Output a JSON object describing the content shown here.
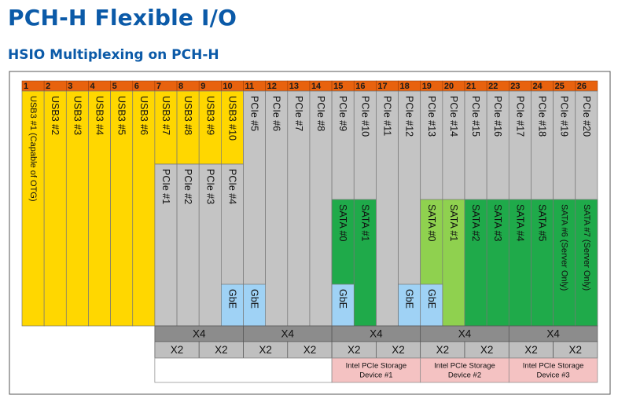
{
  "page": {
    "title": "PCH-H Flexible I/O",
    "subtitle": "HSIO Multiplexing on PCH-H"
  },
  "colors": {
    "header": "#e8620e",
    "usb": "#ffd700",
    "pcie": "#c4c4c4",
    "sata_dark": "#1faa4a",
    "sata_light": "#8fd14f",
    "gbe": "#9fd2f5",
    "mux_bar": "#8c8c8c",
    "x2_row": "#bfbfbf",
    "storage": "#f4c2c2",
    "grid_line": "#777777"
  },
  "diagram": {
    "lane_numbers": [
      "1",
      "2",
      "3",
      "4",
      "5",
      "6",
      "7",
      "8",
      "9",
      "10",
      "11",
      "12",
      "13",
      "14",
      "15",
      "16",
      "17",
      "18",
      "19",
      "20",
      "21",
      "22",
      "23",
      "24",
      "25",
      "26"
    ],
    "blocks": [
      {
        "lane": 1,
        "color": "usb",
        "layer": "top",
        "label": "USB3 #1 (Capable of OTG)"
      },
      {
        "lane": 2,
        "color": "usb",
        "layer": "top",
        "label": "USB3 #2"
      },
      {
        "lane": 3,
        "color": "usb",
        "layer": "top",
        "label": "USB3 #3"
      },
      {
        "lane": 4,
        "color": "usb",
        "layer": "top",
        "label": "USB3 #4"
      },
      {
        "lane": 5,
        "color": "usb",
        "layer": "top",
        "label": "USB3 #5"
      },
      {
        "lane": 6,
        "color": "usb",
        "layer": "top",
        "label": "USB3 #6"
      },
      {
        "lane": 7,
        "color": "usb",
        "layer": "top",
        "label": "USB3 #7"
      },
      {
        "lane": 8,
        "color": "usb",
        "layer": "top",
        "label": "USB3 #8"
      },
      {
        "lane": 9,
        "color": "usb",
        "layer": "top",
        "label": "USB3 #9"
      },
      {
        "lane": 10,
        "color": "usb",
        "layer": "top",
        "label": "USB3 #10"
      },
      {
        "lane": 7,
        "color": "pcie",
        "layer": "bottom",
        "label": "PCIe #1"
      },
      {
        "lane": 8,
        "color": "pcie",
        "layer": "bottom",
        "label": "PCIe #2"
      },
      {
        "lane": 9,
        "color": "pcie",
        "layer": "bottom",
        "label": "PCIe #3"
      },
      {
        "lane": 10,
        "color": "pcie",
        "layer": "bottom",
        "label": "PCIe #4"
      },
      {
        "lane": 10,
        "color": "gbe",
        "layer": "gbe",
        "label": "GbE"
      },
      {
        "lane": 11,
        "color": "pcie",
        "layer": "full",
        "label": "PCIe #5"
      },
      {
        "lane": 11,
        "color": "gbe",
        "layer": "gbe",
        "label": "GbE"
      },
      {
        "lane": 12,
        "color": "pcie",
        "layer": "full",
        "label": "PCIe #6"
      },
      {
        "lane": 13,
        "color": "pcie",
        "layer": "full",
        "label": "PCIe #7"
      },
      {
        "lane": 14,
        "color": "pcie",
        "layer": "full",
        "label": "PCIe #8"
      },
      {
        "lane": 15,
        "color": "pcie",
        "layer": "full",
        "label": "PCIe #9"
      },
      {
        "lane": 15,
        "color": "sata_dark",
        "layer": "sata",
        "label": "SATA #0"
      },
      {
        "lane": 15,
        "color": "gbe",
        "layer": "gbe",
        "label": "GbE"
      },
      {
        "lane": 16,
        "color": "pcie",
        "layer": "full",
        "label": "PCIe #10"
      },
      {
        "lane": 16,
        "color": "sata_dark",
        "layer": "sata",
        "label": "SATA #1"
      },
      {
        "lane": 17,
        "color": "pcie",
        "layer": "full",
        "label": "PCIe #11"
      },
      {
        "lane": 18,
        "color": "pcie",
        "layer": "full",
        "label": "PCIe #12"
      },
      {
        "lane": 18,
        "color": "gbe",
        "layer": "gbe",
        "label": "GbE"
      },
      {
        "lane": 19,
        "color": "pcie",
        "layer": "full",
        "label": "PCIe #13"
      },
      {
        "lane": 19,
        "color": "sata_light",
        "layer": "sata",
        "label": "SATA #0"
      },
      {
        "lane": 19,
        "color": "gbe",
        "layer": "gbe",
        "label": "GbE"
      },
      {
        "lane": 20,
        "color": "pcie",
        "layer": "full",
        "label": "PCIe #14"
      },
      {
        "lane": 20,
        "color": "sata_light",
        "layer": "sata",
        "label": "SATA #1"
      },
      {
        "lane": 21,
        "color": "pcie",
        "layer": "full",
        "label": "PCIe #15"
      },
      {
        "lane": 21,
        "color": "sata_dark",
        "layer": "sata",
        "label": "SATA #2"
      },
      {
        "lane": 22,
        "color": "pcie",
        "layer": "full",
        "label": "PCIe #16"
      },
      {
        "lane": 22,
        "color": "sata_dark",
        "layer": "sata",
        "label": "SATA #3"
      },
      {
        "lane": 23,
        "color": "pcie",
        "layer": "full",
        "label": "PCIe #17"
      },
      {
        "lane": 23,
        "color": "sata_dark",
        "layer": "sata",
        "label": "SATA #4"
      },
      {
        "lane": 24,
        "color": "pcie",
        "layer": "full",
        "label": "PCIe #18"
      },
      {
        "lane": 24,
        "color": "sata_dark",
        "layer": "sata",
        "label": "SATA #5"
      },
      {
        "lane": 25,
        "color": "pcie",
        "layer": "full",
        "label": "PCIe #19"
      },
      {
        "lane": 25,
        "color": "sata_dark",
        "layer": "sata",
        "label": "SATA #6 (Server Only)"
      },
      {
        "lane": 26,
        "color": "pcie",
        "layer": "full",
        "label": "PCIe #20"
      },
      {
        "lane": 26,
        "color": "sata_dark",
        "layer": "sata",
        "label": "SATA #7 (Server Only)"
      }
    ],
    "x4_groups": [
      {
        "start_lane": 7,
        "end_lane": 10,
        "label": "X4"
      },
      {
        "start_lane": 11,
        "end_lane": 14,
        "label": "X4"
      },
      {
        "start_lane": 15,
        "end_lane": 18,
        "label": "X4"
      },
      {
        "start_lane": 19,
        "end_lane": 22,
        "label": "X4"
      },
      {
        "start_lane": 23,
        "end_lane": 26,
        "label": "X4"
      }
    ],
    "x2_groups": [
      {
        "start_lane": 7,
        "end_lane": 8,
        "label": "X2"
      },
      {
        "start_lane": 9,
        "end_lane": 10,
        "label": "X2"
      },
      {
        "start_lane": 11,
        "end_lane": 12,
        "label": "X2"
      },
      {
        "start_lane": 13,
        "end_lane": 14,
        "label": "X2"
      },
      {
        "start_lane": 15,
        "end_lane": 16,
        "label": "X2"
      },
      {
        "start_lane": 17,
        "end_lane": 18,
        "label": "X2"
      },
      {
        "start_lane": 19,
        "end_lane": 20,
        "label": "X2"
      },
      {
        "start_lane": 21,
        "end_lane": 22,
        "label": "X2"
      },
      {
        "start_lane": 23,
        "end_lane": 24,
        "label": "X2"
      },
      {
        "start_lane": 25,
        "end_lane": 26,
        "label": "X2"
      }
    ],
    "storage_devices": [
      {
        "start_lane": 15,
        "end_lane": 18,
        "line1": "Intel PCIe Storage",
        "line2": "Device #1"
      },
      {
        "start_lane": 19,
        "end_lane": 22,
        "line1": "Intel PCIe Storage",
        "line2": "Device #2"
      },
      {
        "start_lane": 23,
        "end_lane": 26,
        "line1": "Intel PCIe Storage",
        "line2": "Device #3"
      }
    ]
  }
}
